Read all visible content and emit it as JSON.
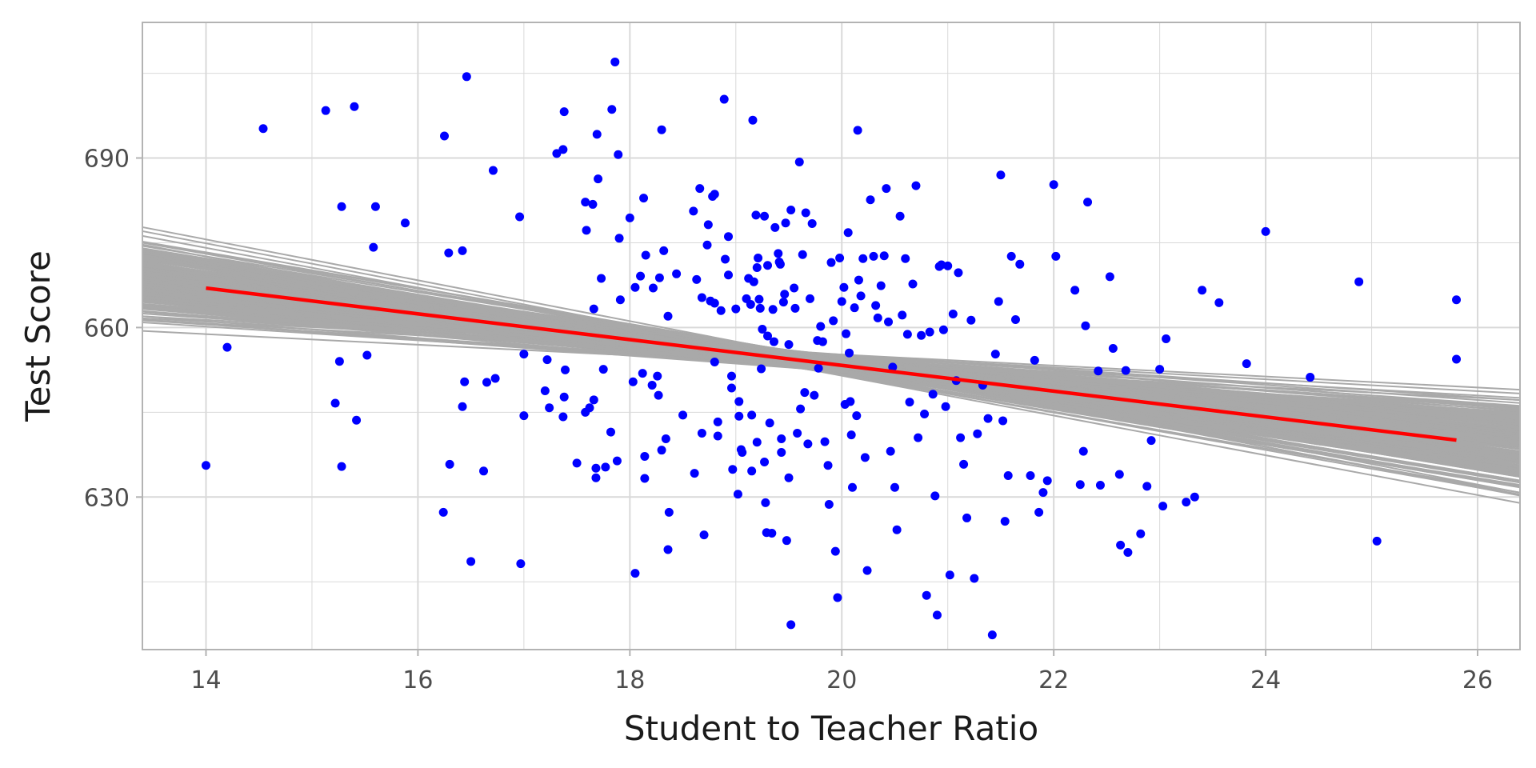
{
  "chart_data": {
    "type": "scatter",
    "xlabel": "Student to Teacher Ratio",
    "ylabel": "Test Score",
    "xlim": [
      13.4,
      26.4
    ],
    "ylim": [
      603,
      714
    ],
    "x_ticks": [
      14,
      16,
      18,
      20,
      22,
      24,
      26
    ],
    "y_ticks": [
      630,
      660,
      690
    ],
    "grid": true,
    "colors": {
      "points": "#0000ff",
      "fit_line": "#ff0000",
      "bootstrap_lines": "#a9a9a9",
      "grid": "#d9d9d9",
      "panel_border": "#b3b3b3"
    },
    "regression_line": {
      "x_start": 14.0,
      "x_end": 25.8,
      "intercept": 698.9,
      "slope": -2.28
    },
    "bootstrap_lines": {
      "count": 200,
      "pivot_x": 19.64,
      "pivot_y": 654.2,
      "slope_min": -3.8,
      "slope_max": -0.7,
      "x_range": [
        13.4,
        26.4
      ]
    },
    "points": [
      [
        14.0,
        635.6
      ],
      [
        14.2,
        656.5
      ],
      [
        14.54,
        695.2
      ],
      [
        15.13,
        698.4
      ],
      [
        15.26,
        654.0
      ],
      [
        15.22,
        646.6
      ],
      [
        15.28,
        681.4
      ],
      [
        15.4,
        699.1
      ],
      [
        15.42,
        643.6
      ],
      [
        15.52,
        655.1
      ],
      [
        15.6,
        681.4
      ],
      [
        15.28,
        635.4
      ],
      [
        15.58,
        674.2
      ],
      [
        15.88,
        678.5
      ],
      [
        16.25,
        693.9
      ],
      [
        16.29,
        673.2
      ],
      [
        16.42,
        673.6
      ],
      [
        16.44,
        650.4
      ],
      [
        16.46,
        704.4
      ],
      [
        16.42,
        646.0
      ],
      [
        16.3,
        635.8
      ],
      [
        16.24,
        627.3
      ],
      [
        16.5,
        618.6
      ],
      [
        16.65,
        650.3
      ],
      [
        16.62,
        634.6
      ],
      [
        16.71,
        687.8
      ],
      [
        16.73,
        651.0
      ],
      [
        16.96,
        679.6
      ],
      [
        17.0,
        655.3
      ],
      [
        17.0,
        644.4
      ],
      [
        16.97,
        618.2
      ],
      [
        17.2,
        648.8
      ],
      [
        17.22,
        654.3
      ],
      [
        17.24,
        645.8
      ],
      [
        17.31,
        690.8
      ],
      [
        17.37,
        691.5
      ],
      [
        17.38,
        698.2
      ],
      [
        17.39,
        652.5
      ],
      [
        17.38,
        647.7
      ],
      [
        17.37,
        644.2
      ],
      [
        17.5,
        636.0
      ],
      [
        17.58,
        645.0
      ],
      [
        17.58,
        682.2
      ],
      [
        17.59,
        677.2
      ],
      [
        17.62,
        645.8
      ],
      [
        17.65,
        681.8
      ],
      [
        17.66,
        663.3
      ],
      [
        17.66,
        647.2
      ],
      [
        17.68,
        633.4
      ],
      [
        17.68,
        635.1
      ],
      [
        17.69,
        694.2
      ],
      [
        17.7,
        686.3
      ],
      [
        17.73,
        668.7
      ],
      [
        17.75,
        652.6
      ],
      [
        17.77,
        635.3
      ],
      [
        17.82,
        641.5
      ],
      [
        17.83,
        698.6
      ],
      [
        17.86,
        707.0
      ],
      [
        17.89,
        690.6
      ],
      [
        17.9,
        675.8
      ],
      [
        17.91,
        664.9
      ],
      [
        17.88,
        636.4
      ],
      [
        18.0,
        679.4
      ],
      [
        18.03,
        650.4
      ],
      [
        18.05,
        667.1
      ],
      [
        18.05,
        616.5
      ],
      [
        18.1,
        669.1
      ],
      [
        18.12,
        651.9
      ],
      [
        18.13,
        682.9
      ],
      [
        18.15,
        672.8
      ],
      [
        18.14,
        637.2
      ],
      [
        18.14,
        633.3
      ],
      [
        18.21,
        649.8
      ],
      [
        18.22,
        667.0
      ],
      [
        18.26,
        651.4
      ],
      [
        18.27,
        648.0
      ],
      [
        18.3,
        695.0
      ],
      [
        18.28,
        668.8
      ],
      [
        18.3,
        638.3
      ],
      [
        18.32,
        673.6
      ],
      [
        18.36,
        662.0
      ],
      [
        18.34,
        640.3
      ],
      [
        18.37,
        627.3
      ],
      [
        18.36,
        620.7
      ],
      [
        18.44,
        669.5
      ],
      [
        18.5,
        644.5
      ],
      [
        18.6,
        680.6
      ],
      [
        18.61,
        634.2
      ],
      [
        18.63,
        668.5
      ],
      [
        18.66,
        684.6
      ],
      [
        18.68,
        665.3
      ],
      [
        18.68,
        641.3
      ],
      [
        18.7,
        623.3
      ],
      [
        18.73,
        674.6
      ],
      [
        18.74,
        678.2
      ],
      [
        18.76,
        664.7
      ],
      [
        18.78,
        683.2
      ],
      [
        18.8,
        683.6
      ],
      [
        18.8,
        664.3
      ],
      [
        18.8,
        653.9
      ],
      [
        18.83,
        640.8
      ],
      [
        18.83,
        643.3
      ],
      [
        18.86,
        663.0
      ],
      [
        18.89,
        700.4
      ],
      [
        18.9,
        672.1
      ],
      [
        18.93,
        676.1
      ],
      [
        18.93,
        669.3
      ],
      [
        18.96,
        651.4
      ],
      [
        18.96,
        649.3
      ],
      [
        18.97,
        634.9
      ],
      [
        19.0,
        663.3
      ],
      [
        19.02,
        630.5
      ],
      [
        19.03,
        646.9
      ],
      [
        19.03,
        644.3
      ],
      [
        19.05,
        638.4
      ],
      [
        19.06,
        637.9
      ],
      [
        19.1,
        665.1
      ],
      [
        19.12,
        668.7
      ],
      [
        19.14,
        664.1
      ],
      [
        19.15,
        644.5
      ],
      [
        19.15,
        634.6
      ],
      [
        19.16,
        696.7
      ],
      [
        19.17,
        668.1
      ],
      [
        19.19,
        679.9
      ],
      [
        19.2,
        670.6
      ],
      [
        19.2,
        639.7
      ],
      [
        19.21,
        672.3
      ],
      [
        19.22,
        665.0
      ],
      [
        19.23,
        663.4
      ],
      [
        19.24,
        652.7
      ],
      [
        19.25,
        659.7
      ],
      [
        19.27,
        679.7
      ],
      [
        19.27,
        636.2
      ],
      [
        19.28,
        629.0
      ],
      [
        19.29,
        623.7
      ],
      [
        19.3,
        671.0
      ],
      [
        19.3,
        658.5
      ],
      [
        19.32,
        643.1
      ],
      [
        19.34,
        623.6
      ],
      [
        19.35,
        663.2
      ],
      [
        19.36,
        657.5
      ],
      [
        19.37,
        677.7
      ],
      [
        19.4,
        673.1
      ],
      [
        19.41,
        671.6
      ],
      [
        19.42,
        671.2
      ],
      [
        19.43,
        640.3
      ],
      [
        19.43,
        637.9
      ],
      [
        19.45,
        664.5
      ],
      [
        19.46,
        665.9
      ],
      [
        19.47,
        678.5
      ],
      [
        19.48,
        622.3
      ],
      [
        19.5,
        633.4
      ],
      [
        19.5,
        657.0
      ],
      [
        19.52,
        680.8
      ],
      [
        19.52,
        607.4
      ],
      [
        19.55,
        667.0
      ],
      [
        19.56,
        663.4
      ],
      [
        19.58,
        641.3
      ],
      [
        19.6,
        689.3
      ],
      [
        19.61,
        645.6
      ],
      [
        19.63,
        672.9
      ],
      [
        19.65,
        648.5
      ],
      [
        19.66,
        680.3
      ],
      [
        19.68,
        639.4
      ],
      [
        19.7,
        665.1
      ],
      [
        19.72,
        678.4
      ],
      [
        19.74,
        648.0
      ],
      [
        19.77,
        657.7
      ],
      [
        19.78,
        652.8
      ],
      [
        19.8,
        660.2
      ],
      [
        19.82,
        657.5
      ],
      [
        19.84,
        639.8
      ],
      [
        19.87,
        635.6
      ],
      [
        19.88,
        628.7
      ],
      [
        19.9,
        671.5
      ],
      [
        19.92,
        661.2
      ],
      [
        19.94,
        620.4
      ],
      [
        19.96,
        612.2
      ],
      [
        19.98,
        672.3
      ],
      [
        20.0,
        664.6
      ],
      [
        20.02,
        667.1
      ],
      [
        20.03,
        646.4
      ],
      [
        20.04,
        658.9
      ],
      [
        20.06,
        676.8
      ],
      [
        20.07,
        655.5
      ],
      [
        20.08,
        646.9
      ],
      [
        20.09,
        641.0
      ],
      [
        20.1,
        631.7
      ],
      [
        20.12,
        663.5
      ],
      [
        20.14,
        644.4
      ],
      [
        20.15,
        694.9
      ],
      [
        20.16,
        668.4
      ],
      [
        20.18,
        665.6
      ],
      [
        20.2,
        672.2
      ],
      [
        20.22,
        637.0
      ],
      [
        20.24,
        617.0
      ],
      [
        20.27,
        682.6
      ],
      [
        20.3,
        672.6
      ],
      [
        20.32,
        663.9
      ],
      [
        20.34,
        661.7
      ],
      [
        20.37,
        667.4
      ],
      [
        20.4,
        672.7
      ],
      [
        20.42,
        684.6
      ],
      [
        20.44,
        661.0
      ],
      [
        20.46,
        638.1
      ],
      [
        20.48,
        653.0
      ],
      [
        20.5,
        631.7
      ],
      [
        20.52,
        624.2
      ],
      [
        20.55,
        679.7
      ],
      [
        20.57,
        662.2
      ],
      [
        20.6,
        672.2
      ],
      [
        20.62,
        658.8
      ],
      [
        20.64,
        646.8
      ],
      [
        20.67,
        667.7
      ],
      [
        20.7,
        685.1
      ],
      [
        20.72,
        640.5
      ],
      [
        20.75,
        658.6
      ],
      [
        20.78,
        644.7
      ],
      [
        20.8,
        612.6
      ],
      [
        20.83,
        659.2
      ],
      [
        20.86,
        648.2
      ],
      [
        20.88,
        630.2
      ],
      [
        20.9,
        609.1
      ],
      [
        20.92,
        670.8
      ],
      [
        20.94,
        671.1
      ],
      [
        20.96,
        659.6
      ],
      [
        20.98,
        646.0
      ],
      [
        21.0,
        670.9
      ],
      [
        21.02,
        616.2
      ],
      [
        21.05,
        662.4
      ],
      [
        21.08,
        650.6
      ],
      [
        21.1,
        669.7
      ],
      [
        21.12,
        640.5
      ],
      [
        21.15,
        635.8
      ],
      [
        21.18,
        626.3
      ],
      [
        21.22,
        661.3
      ],
      [
        21.25,
        615.6
      ],
      [
        21.28,
        641.2
      ],
      [
        21.33,
        649.8
      ],
      [
        21.38,
        643.9
      ],
      [
        21.42,
        605.6
      ],
      [
        21.45,
        655.3
      ],
      [
        21.48,
        664.6
      ],
      [
        21.5,
        687.0
      ],
      [
        21.52,
        643.5
      ],
      [
        21.54,
        625.7
      ],
      [
        21.57,
        633.8
      ],
      [
        21.6,
        672.6
      ],
      [
        21.64,
        661.4
      ],
      [
        21.68,
        671.2
      ],
      [
        21.78,
        633.8
      ],
      [
        21.82,
        654.2
      ],
      [
        21.86,
        627.3
      ],
      [
        21.9,
        630.8
      ],
      [
        21.94,
        632.9
      ],
      [
        22.0,
        685.3
      ],
      [
        22.02,
        672.6
      ],
      [
        22.2,
        666.6
      ],
      [
        22.25,
        632.2
      ],
      [
        22.28,
        638.1
      ],
      [
        22.3,
        660.3
      ],
      [
        22.32,
        682.2
      ],
      [
        22.42,
        652.3
      ],
      [
        22.44,
        632.1
      ],
      [
        22.53,
        669.0
      ],
      [
        22.56,
        656.3
      ],
      [
        22.62,
        634.0
      ],
      [
        22.63,
        621.5
      ],
      [
        22.68,
        652.4
      ],
      [
        22.7,
        620.2
      ],
      [
        22.82,
        623.5
      ],
      [
        22.88,
        631.9
      ],
      [
        22.92,
        640.0
      ],
      [
        23.0,
        652.6
      ],
      [
        23.03,
        628.4
      ],
      [
        23.06,
        658.0
      ],
      [
        23.25,
        629.1
      ],
      [
        23.33,
        630.0
      ],
      [
        23.4,
        666.6
      ],
      [
        23.56,
        664.4
      ],
      [
        23.82,
        653.6
      ],
      [
        24.0,
        677.0
      ],
      [
        24.42,
        651.2
      ],
      [
        24.88,
        668.1
      ],
      [
        25.05,
        622.2
      ],
      [
        25.8,
        664.9
      ],
      [
        25.8,
        654.4
      ]
    ]
  }
}
